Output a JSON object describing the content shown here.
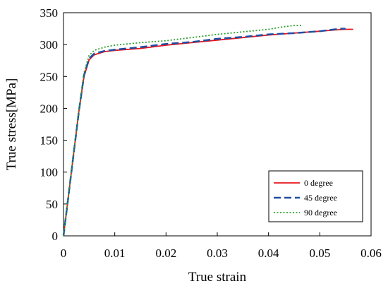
{
  "chart_data": {
    "type": "line",
    "xlabel": "True strain",
    "ylabel": "True stress[MPa]",
    "xlim": [
      0,
      0.06
    ],
    "ylim": [
      0,
      350
    ],
    "xticks": [
      {
        "value": 0,
        "label": "0"
      },
      {
        "value": 0.01,
        "label": "0.01"
      },
      {
        "value": 0.02,
        "label": "0.02"
      },
      {
        "value": 0.03,
        "label": "0.03"
      },
      {
        "value": 0.04,
        "label": "0.04"
      },
      {
        "value": 0.05,
        "label": "0.05"
      },
      {
        "value": 0.06,
        "label": "0.06"
      }
    ],
    "yticks": [
      {
        "value": 0,
        "label": "0"
      },
      {
        "value": 50,
        "label": "50"
      },
      {
        "value": 100,
        "label": "100"
      },
      {
        "value": 150,
        "label": "150"
      },
      {
        "value": 200,
        "label": "200"
      },
      {
        "value": 250,
        "label": "250"
      },
      {
        "value": 300,
        "label": "300"
      },
      {
        "value": 350,
        "label": "350"
      }
    ],
    "grid": false,
    "legend": {
      "position": "bottom-right",
      "entries": [
        "0 degree",
        "45 degree",
        "90 degree"
      ]
    },
    "series": [
      {
        "name": "0 degree",
        "color": "#e8141c",
        "dash": "solid",
        "x": [
          0,
          0.001,
          0.002,
          0.003,
          0.004,
          0.005,
          0.006,
          0.008,
          0.01,
          0.015,
          0.02,
          0.025,
          0.03,
          0.035,
          0.04,
          0.045,
          0.05,
          0.053,
          0.055,
          0.0565
        ],
        "y": [
          0,
          65,
          130,
          195,
          250,
          276,
          284,
          289,
          291,
          294,
          299,
          303,
          307,
          311,
          315,
          318,
          321,
          323,
          324,
          324
        ]
      },
      {
        "name": "45 degree",
        "color": "#1f4fa3",
        "dash": "dashed",
        "x": [
          0,
          0.001,
          0.002,
          0.003,
          0.004,
          0.005,
          0.006,
          0.008,
          0.01,
          0.015,
          0.02,
          0.025,
          0.03,
          0.035,
          0.04,
          0.045,
          0.05,
          0.052,
          0.054,
          0.055
        ],
        "y": [
          0,
          65,
          130,
          195,
          252,
          278,
          286,
          290,
          292,
          296,
          301,
          304,
          309,
          312,
          316,
          318,
          321,
          323,
          325,
          325
        ]
      },
      {
        "name": "90 degree",
        "color": "#2e9e2e",
        "dash": "dotted",
        "x": [
          0,
          0.001,
          0.002,
          0.003,
          0.004,
          0.005,
          0.006,
          0.008,
          0.01,
          0.015,
          0.02,
          0.025,
          0.03,
          0.035,
          0.04,
          0.043,
          0.045,
          0.0465
        ],
        "y": [
          0,
          66,
          132,
          198,
          256,
          283,
          291,
          296,
          299,
          303,
          306,
          311,
          316,
          320,
          324,
          328,
          330,
          330
        ]
      }
    ]
  }
}
